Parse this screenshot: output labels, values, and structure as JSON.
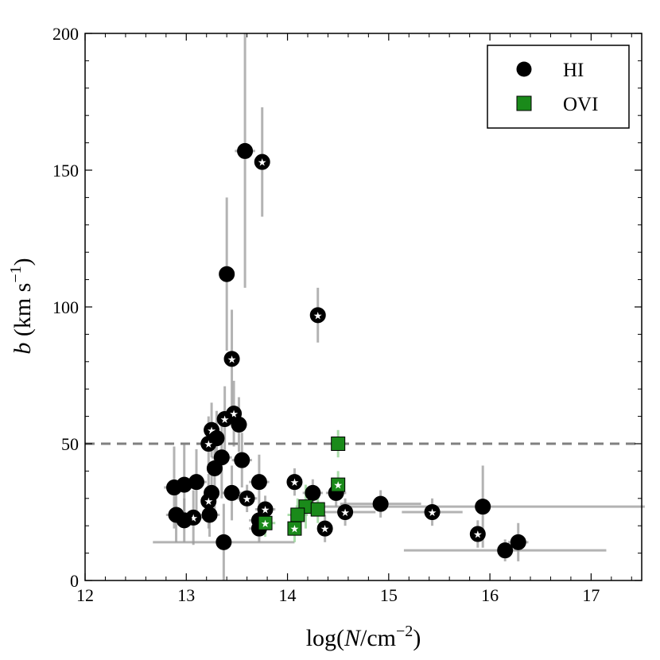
{
  "chart_data": {
    "type": "scatter",
    "title": "",
    "xlabel": "log(N/cm^-2)",
    "ylabel": "b (km s^-1)",
    "xlim": [
      12,
      17.5
    ],
    "ylim": [
      0,
      200
    ],
    "xticks": [
      12,
      13,
      14,
      15,
      16,
      17
    ],
    "yticks": [
      0,
      50,
      100,
      150,
      200
    ],
    "xtick_labels": [
      "12",
      "13",
      "14",
      "15",
      "16",
      "17"
    ],
    "ytick_labels": [
      "0",
      "50",
      "100",
      "150",
      "200"
    ],
    "reference_line": {
      "y": 50,
      "style": "dashed",
      "color": "#808080"
    },
    "legend": {
      "position": "top-right",
      "entries": [
        {
          "label": "HI",
          "marker": "circle",
          "color": "#000000"
        },
        {
          "label": "OVI",
          "marker": "square",
          "color": "#1a8a1a"
        }
      ]
    },
    "series": [
      {
        "name": "HI",
        "marker": "circle",
        "color": "#000000",
        "points": [
          {
            "x": 13.58,
            "y": 157,
            "xerr": 0.1,
            "yerr": 50,
            "star": false
          },
          {
            "x": 13.75,
            "y": 153,
            "xerr": 0.0,
            "yerr": 20,
            "star": true
          },
          {
            "x": 13.4,
            "y": 112,
            "xerr": 0.05,
            "yerr": 28,
            "star": false
          },
          {
            "x": 14.3,
            "y": 97,
            "xerr": 0.0,
            "yerr": 10,
            "star": true
          },
          {
            "x": 13.45,
            "y": 81,
            "xerr": 0.05,
            "yerr": 18,
            "star": true
          },
          {
            "x": 13.47,
            "y": 61,
            "xerr": 0.05,
            "yerr": 12,
            "star": true
          },
          {
            "x": 13.38,
            "y": 59,
            "xerr": 0.05,
            "yerr": 12,
            "star": true
          },
          {
            "x": 13.52,
            "y": 57,
            "xerr": 0.08,
            "yerr": 10,
            "star": false
          },
          {
            "x": 13.25,
            "y": 55,
            "xerr": 0.05,
            "yerr": 10,
            "star": true
          },
          {
            "x": 13.3,
            "y": 52,
            "xerr": 0.05,
            "yerr": 10,
            "star": false
          },
          {
            "x": 13.22,
            "y": 50,
            "xerr": 0.05,
            "yerr": 10,
            "star": true
          },
          {
            "x": 13.35,
            "y": 45,
            "xerr": 0.1,
            "yerr": 15,
            "star": false
          },
          {
            "x": 13.55,
            "y": 44,
            "xerr": 0.1,
            "yerr": 10,
            "star": false
          },
          {
            "x": 13.28,
            "y": 41,
            "xerr": 0.05,
            "yerr": 15,
            "star": false
          },
          {
            "x": 14.07,
            "y": 36,
            "xerr": 0.05,
            "yerr": 5,
            "star": true
          },
          {
            "x": 13.72,
            "y": 36,
            "xerr": 0.1,
            "yerr": 10,
            "star": false
          },
          {
            "x": 13.1,
            "y": 36,
            "xerr": 0.1,
            "yerr": 12,
            "star": false
          },
          {
            "x": 12.98,
            "y": 35,
            "xerr": 0.1,
            "yerr": 15,
            "star": false
          },
          {
            "x": 12.88,
            "y": 34,
            "xerr": 0.1,
            "yerr": 15,
            "star": false
          },
          {
            "x": 13.45,
            "y": 32,
            "xerr": 0.1,
            "yerr": 10,
            "star": false
          },
          {
            "x": 13.25,
            "y": 32,
            "xerr": 0.05,
            "yerr": 10,
            "star": false
          },
          {
            "x": 14.25,
            "y": 32,
            "xerr": 0.1,
            "yerr": 5,
            "star": false
          },
          {
            "x": 14.48,
            "y": 32,
            "xerr": 0.1,
            "yerr": 5,
            "star": false
          },
          {
            "x": 13.6,
            "y": 30,
            "xerr": 0.1,
            "yerr": 5,
            "star": true
          },
          {
            "x": 13.22,
            "y": 29,
            "xerr": 0.05,
            "yerr": 10,
            "star": true
          },
          {
            "x": 14.92,
            "y": 28,
            "xerr": 0.4,
            "yerr": 5,
            "star": false
          },
          {
            "x": 15.93,
            "y": 27,
            "xerr": 1.6,
            "yerr": 15,
            "star": false
          },
          {
            "x": 13.78,
            "y": 26,
            "xerr": 0.1,
            "yerr": 5,
            "star": true
          },
          {
            "x": 14.57,
            "y": 25,
            "xerr": 0.3,
            "yerr": 5,
            "star": true
          },
          {
            "x": 15.43,
            "y": 25,
            "xerr": 0.3,
            "yerr": 5,
            "star": true
          },
          {
            "x": 12.9,
            "y": 24,
            "xerr": 0.1,
            "yerr": 10,
            "star": false
          },
          {
            "x": 13.23,
            "y": 24,
            "xerr": 0.1,
            "yerr": 8,
            "star": false
          },
          {
            "x": 13.07,
            "y": 23,
            "xerr": 0.1,
            "yerr": 10,
            "star": true
          },
          {
            "x": 12.98,
            "y": 22,
            "xerr": 0.1,
            "yerr": 8,
            "star": false
          },
          {
            "x": 13.72,
            "y": 22,
            "xerr": 0.1,
            "yerr": 5,
            "star": false
          },
          {
            "x": 14.37,
            "y": 19,
            "xerr": 0.05,
            "yerr": 5,
            "star": true
          },
          {
            "x": 13.72,
            "y": 19,
            "xerr": 0.1,
            "yerr": 5,
            "star": false
          },
          {
            "x": 15.88,
            "y": 17,
            "xerr": 0.05,
            "yerr": 5,
            "star": true
          },
          {
            "x": 16.28,
            "y": 14,
            "xerr": 0.1,
            "yerr": 7,
            "star": false
          },
          {
            "x": 13.37,
            "y": 14,
            "xerr": 0.7,
            "yerr": 14,
            "star": false
          },
          {
            "x": 16.15,
            "y": 11,
            "xerr": 1.0,
            "yerr": 4,
            "star": false
          }
        ]
      },
      {
        "name": "OVI",
        "marker": "square",
        "color": "#1a8a1a",
        "points": [
          {
            "x": 14.5,
            "y": 50,
            "xerr": 0.05,
            "yerr": 5,
            "star": false
          },
          {
            "x": 14.5,
            "y": 35,
            "xerr": 0.05,
            "yerr": 5,
            "star": true
          },
          {
            "x": 14.18,
            "y": 27,
            "xerr": 0.1,
            "yerr": 8,
            "star": false
          },
          {
            "x": 14.3,
            "y": 26,
            "xerr": 0.05,
            "yerr": 5,
            "star": false
          },
          {
            "x": 14.1,
            "y": 24,
            "xerr": 0.1,
            "yerr": 6,
            "star": false
          },
          {
            "x": 13.78,
            "y": 21,
            "xerr": 0.1,
            "yerr": 5,
            "star": true
          },
          {
            "x": 14.07,
            "y": 19,
            "xerr": 0.05,
            "yerr": 5,
            "star": true
          }
        ]
      }
    ],
    "notes": "White star inside a marker flags a subset of absorbers; error bars drawn in gray (HI) and light green (OVI)."
  }
}
